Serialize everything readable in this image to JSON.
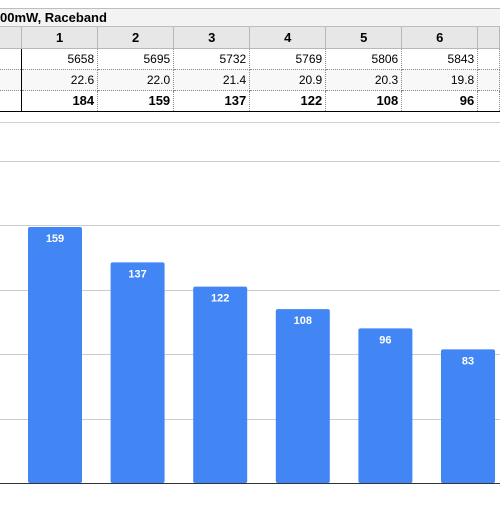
{
  "sheet": {
    "title": "00mW, Raceband",
    "columns": [
      "1",
      "2",
      "3",
      "4",
      "5",
      "6"
    ],
    "rows": [
      {
        "values": [
          "5658",
          "5695",
          "5732",
          "5769",
          "5806",
          "5843"
        ],
        "style": "normal"
      },
      {
        "values": [
          "22.6",
          "22.0",
          "21.4",
          "20.9",
          "20.3",
          "19.8"
        ],
        "style": "alt"
      },
      {
        "values": [
          "184",
          "159",
          "137",
          "122",
          "108",
          "96"
        ],
        "style": "bold"
      }
    ]
  },
  "chart_data": {
    "type": "bar",
    "categories": [
      "",
      "",
      "",
      "",
      "",
      ""
    ],
    "values": [
      159,
      137,
      122,
      108,
      96,
      83
    ],
    "title": "",
    "xlabel": "",
    "ylabel": "",
    "ylim": [
      0,
      200
    ],
    "grid": true,
    "bar_color": "#4285f4"
  }
}
